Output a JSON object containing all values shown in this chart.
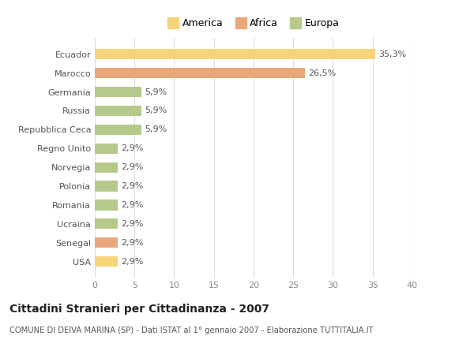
{
  "categories": [
    "USA",
    "Senegal",
    "Ucraina",
    "Romania",
    "Polonia",
    "Norvegia",
    "Regno Unito",
    "Repubblica Ceca",
    "Russia",
    "Germania",
    "Marocco",
    "Ecuador"
  ],
  "values": [
    2.9,
    2.9,
    2.9,
    2.9,
    2.9,
    2.9,
    2.9,
    5.9,
    5.9,
    5.9,
    26.5,
    35.3
  ],
  "labels": [
    "2,9%",
    "2,9%",
    "2,9%",
    "2,9%",
    "2,9%",
    "2,9%",
    "2,9%",
    "5,9%",
    "5,9%",
    "5,9%",
    "26,5%",
    "35,3%"
  ],
  "colors": [
    "#f5d47a",
    "#e8a87c",
    "#b5c98a",
    "#b5c98a",
    "#b5c98a",
    "#b5c98a",
    "#b5c98a",
    "#b5c98a",
    "#b5c98a",
    "#b5c98a",
    "#e8a87c",
    "#f5d47a"
  ],
  "legend": [
    {
      "label": "America",
      "color": "#f5d47a"
    },
    {
      "label": "Africa",
      "color": "#e8a87c"
    },
    {
      "label": "Europa",
      "color": "#b5c98a"
    }
  ],
  "xlim": [
    0,
    40
  ],
  "xticks": [
    0,
    5,
    10,
    15,
    20,
    25,
    30,
    35,
    40
  ],
  "title": "Cittadini Stranieri per Cittadinanza - 2007",
  "subtitle": "COMUNE DI DEIVA MARINA (SP) - Dati ISTAT al 1° gennaio 2007 - Elaborazione TUTTITALIA.IT",
  "bg_color": "#ffffff",
  "plot_bg_color": "#ffffff",
  "grid_color": "#dddddd",
  "bar_height": 0.55
}
